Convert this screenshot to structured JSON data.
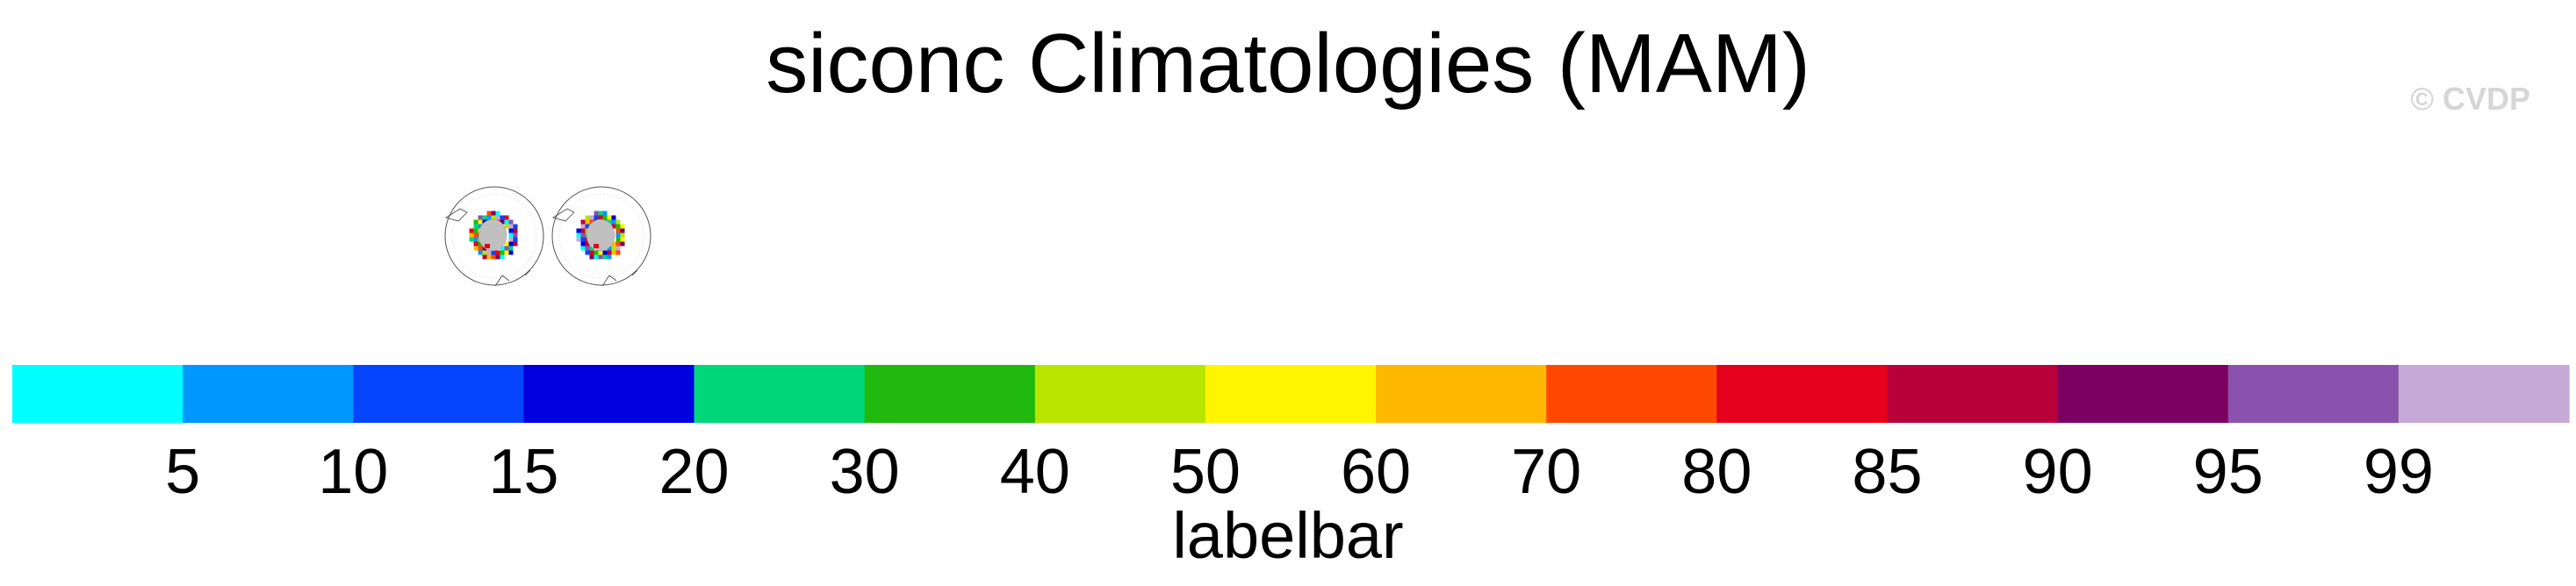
{
  "header": {
    "title": "siconc Climatologies (MAM)",
    "watermark": "© CVDP"
  },
  "panels": [
    {
      "caption": "",
      "icon": "polar-stereographic-map"
    },
    {
      "caption": "",
      "icon": "polar-stereographic-map"
    }
  ],
  "chart_data": {
    "type": "heatmap",
    "title": "siconc Climatologies (MAM)",
    "colorbar": {
      "title": "labelbar",
      "tick_labels": [
        "5",
        "10",
        "15",
        "20",
        "30",
        "40",
        "50",
        "60",
        "70",
        "80",
        "85",
        "90",
        "95",
        "99"
      ],
      "colors": [
        "#00ffff",
        "#0098ff",
        "#0645fe",
        "#0000de",
        "#00d77b",
        "#21b90d",
        "#b8e600",
        "#fff500",
        "#ffb800",
        "#ff4900",
        "#e5001b",
        "#b8003a",
        "#7b0061",
        "#8b52ad",
        "#c5aad8"
      ]
    },
    "land_color": "#c0c0c0"
  }
}
